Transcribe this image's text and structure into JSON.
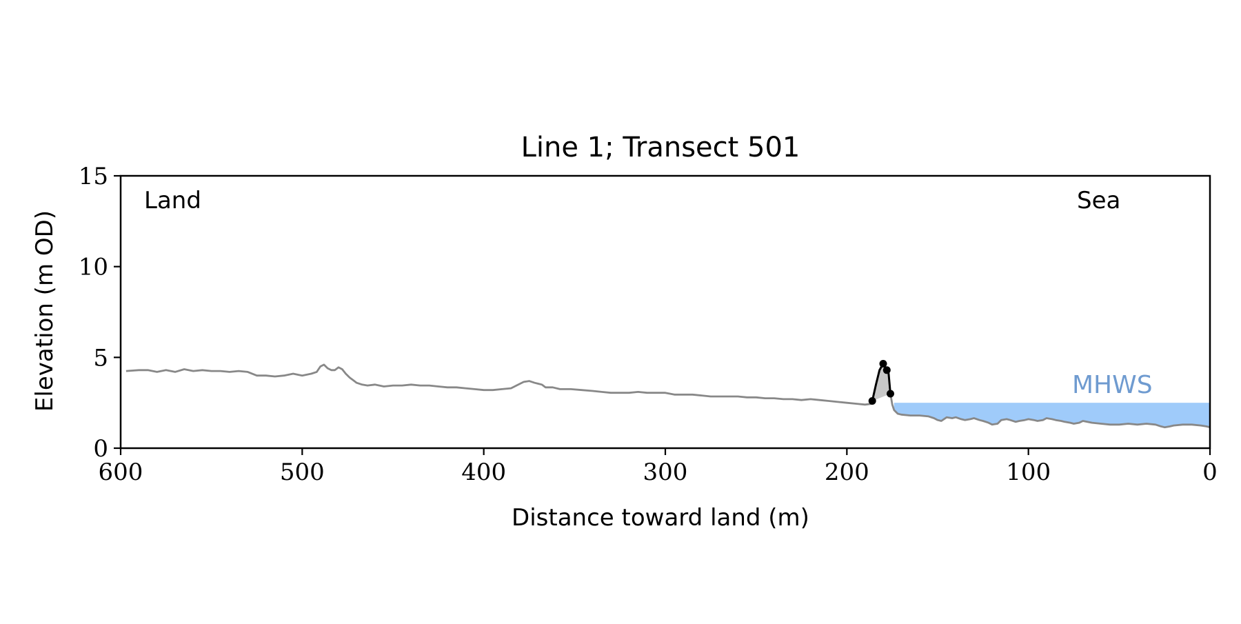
{
  "chart_data": {
    "type": "line",
    "title": "Line 1; Transect 501",
    "xlabel": "Distance toward land (m)",
    "ylabel": "Elevation (m OD)",
    "xlim": [
      600,
      0
    ],
    "ylim": [
      0,
      15
    ],
    "x_ticks": [
      600,
      500,
      400,
      300,
      200,
      100,
      0
    ],
    "y_ticks": [
      0,
      5,
      10,
      15
    ],
    "grid": false,
    "annotations": {
      "land": "Land",
      "sea": "Sea",
      "mhws": "MHWS"
    },
    "mhws": {
      "level": 2.5,
      "x_from": 174,
      "x_to": 0
    },
    "colors": {
      "profile": "#888888",
      "dune": "#000000",
      "dune_fill": "#c8c8c8",
      "water": "#9fcbfa",
      "mhws_text": "#6f9bd0",
      "axis": "#000000"
    },
    "series": [
      {
        "role": "profile",
        "x": [
          597,
          590,
          585,
          580,
          575,
          570,
          565,
          560,
          555,
          550,
          545,
          540,
          535,
          530,
          525,
          520,
          515,
          510,
          505,
          500,
          495,
          492,
          490,
          488,
          486,
          484,
          482,
          480,
          478,
          476,
          474,
          472,
          470,
          467,
          464,
          460,
          455,
          450,
          445,
          440,
          435,
          430,
          425,
          420,
          415,
          410,
          405,
          400,
          395,
          390,
          385,
          382,
          380,
          378,
          375,
          372,
          370,
          368,
          366,
          362,
          358,
          352,
          346,
          340,
          335,
          330,
          325,
          320,
          315,
          310,
          305,
          300,
          295,
          290,
          285,
          280,
          275,
          270,
          265,
          260,
          255,
          250,
          245,
          240,
          235,
          230,
          225,
          220,
          215,
          210,
          205,
          200,
          195,
          190,
          186
        ],
        "y": [
          4.25,
          4.3,
          4.3,
          4.2,
          4.3,
          4.2,
          4.35,
          4.25,
          4.3,
          4.25,
          4.25,
          4.2,
          4.25,
          4.2,
          4.0,
          4.0,
          3.95,
          4.0,
          4.1,
          4.0,
          4.1,
          4.2,
          4.5,
          4.6,
          4.4,
          4.3,
          4.3,
          4.45,
          4.35,
          4.1,
          3.9,
          3.75,
          3.6,
          3.5,
          3.45,
          3.5,
          3.4,
          3.45,
          3.45,
          3.5,
          3.45,
          3.45,
          3.4,
          3.35,
          3.35,
          3.3,
          3.25,
          3.2,
          3.2,
          3.25,
          3.3,
          3.45,
          3.55,
          3.65,
          3.7,
          3.6,
          3.55,
          3.5,
          3.35,
          3.35,
          3.25,
          3.25,
          3.2,
          3.15,
          3.1,
          3.05,
          3.05,
          3.05,
          3.1,
          3.05,
          3.05,
          3.05,
          2.95,
          2.95,
          2.95,
          2.9,
          2.85,
          2.85,
          2.85,
          2.85,
          2.8,
          2.8,
          2.75,
          2.75,
          2.7,
          2.7,
          2.65,
          2.7,
          2.65,
          2.6,
          2.55,
          2.5,
          2.45,
          2.4,
          2.45
        ]
      },
      {
        "role": "dune",
        "x": [
          186,
          184,
          182,
          180,
          178,
          177,
          176
        ],
        "y": [
          2.6,
          3.5,
          4.3,
          4.65,
          4.3,
          4.1,
          3.0
        ]
      },
      {
        "role": "profile",
        "x": [
          176,
          175,
          174,
          172,
          170,
          165,
          160,
          155,
          152,
          150,
          148,
          145,
          142,
          140,
          137,
          135,
          132,
          130,
          127,
          125,
          122,
          120,
          117,
          115,
          112,
          110,
          107,
          105,
          102,
          100,
          97,
          95,
          92,
          90,
          87,
          85,
          82,
          80,
          77,
          75,
          72,
          70,
          65,
          60,
          55,
          50,
          45,
          40,
          35,
          30,
          27,
          25,
          22,
          20,
          15,
          10,
          5,
          2,
          0
        ],
        "y": [
          3.0,
          2.4,
          2.1,
          1.9,
          1.85,
          1.8,
          1.8,
          1.75,
          1.65,
          1.55,
          1.5,
          1.7,
          1.65,
          1.7,
          1.6,
          1.55,
          1.6,
          1.65,
          1.55,
          1.5,
          1.4,
          1.3,
          1.35,
          1.55,
          1.6,
          1.55,
          1.45,
          1.5,
          1.55,
          1.6,
          1.55,
          1.5,
          1.55,
          1.65,
          1.6,
          1.55,
          1.5,
          1.45,
          1.4,
          1.35,
          1.4,
          1.5,
          1.4,
          1.35,
          1.3,
          1.3,
          1.35,
          1.3,
          1.35,
          1.3,
          1.2,
          1.15,
          1.2,
          1.25,
          1.3,
          1.3,
          1.25,
          1.2,
          1.15
        ]
      }
    ]
  }
}
